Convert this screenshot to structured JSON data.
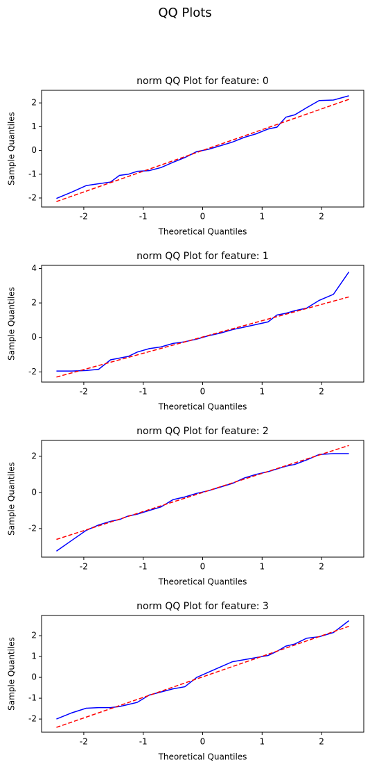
{
  "title": "QQ Plots",
  "chart_data": [
    {
      "type": "line",
      "title": "norm QQ Plot for feature: 0",
      "xlabel": "Theoretical Quantiles",
      "ylabel": "Sample Quantiles",
      "x": [
        -2.46,
        -2.2,
        -1.96,
        -1.75,
        -1.55,
        -1.4,
        -1.25,
        -1.1,
        -0.9,
        -0.7,
        -0.5,
        -0.3,
        -0.1,
        0.1,
        0.3,
        0.5,
        0.7,
        0.9,
        1.1,
        1.25,
        1.4,
        1.55,
        1.75,
        1.96,
        2.2,
        2.46
      ],
      "series": [
        {
          "color": "#0000ff",
          "values": [
            -2.02,
            -1.75,
            -1.48,
            -1.4,
            -1.33,
            -1.05,
            -1.0,
            -0.88,
            -0.85,
            -0.72,
            -0.5,
            -0.3,
            -0.05,
            0.05,
            0.2,
            0.35,
            0.55,
            0.7,
            0.9,
            0.98,
            1.4,
            1.5,
            1.8,
            2.1,
            2.12,
            2.3
          ]
        },
        {
          "color": "#ff0000",
          "dashed": true,
          "x": [
            -2.46,
            2.46
          ],
          "values": [
            -2.15,
            2.15
          ]
        }
      ],
      "xlim": [
        -2.71,
        2.71
      ],
      "ylim": [
        -2.38,
        2.53
      ],
      "xticks": [
        -2,
        -1,
        0,
        1,
        2
      ],
      "yticks": [
        -2,
        -1,
        0,
        1,
        2
      ]
    },
    {
      "type": "line",
      "title": "norm QQ Plot for feature: 1",
      "xlabel": "Theoretical Quantiles",
      "ylabel": "Sample Quantiles",
      "x": [
        -2.46,
        -2.2,
        -1.96,
        -1.75,
        -1.55,
        -1.4,
        -1.25,
        -1.1,
        -0.9,
        -0.7,
        -0.5,
        -0.3,
        -0.1,
        0.1,
        0.3,
        0.5,
        0.7,
        0.9,
        1.1,
        1.25,
        1.4,
        1.55,
        1.75,
        1.96,
        2.2,
        2.46
      ],
      "series": [
        {
          "color": "#0000ff",
          "values": [
            -1.95,
            -1.95,
            -1.92,
            -1.85,
            -1.3,
            -1.2,
            -1.1,
            -0.85,
            -0.65,
            -0.55,
            -0.35,
            -0.25,
            -0.1,
            0.1,
            0.25,
            0.45,
            0.6,
            0.75,
            0.9,
            1.3,
            1.4,
            1.55,
            1.7,
            2.15,
            2.5,
            3.8
          ]
        },
        {
          "color": "#ff0000",
          "dashed": true,
          "x": [
            -2.46,
            2.46
          ],
          "values": [
            -2.3,
            2.35
          ]
        }
      ],
      "xlim": [
        -2.71,
        2.71
      ],
      "ylim": [
        -2.59,
        4.18
      ],
      "xticks": [
        -2,
        -1,
        0,
        1,
        2
      ],
      "yticks": [
        -2,
        0,
        2,
        4
      ]
    },
    {
      "type": "line",
      "title": "norm QQ Plot for feature: 2",
      "xlabel": "Theoretical Quantiles",
      "ylabel": "Sample Quantiles",
      "x": [
        -2.46,
        -2.2,
        -1.96,
        -1.75,
        -1.55,
        -1.4,
        -1.25,
        -1.1,
        -0.9,
        -0.7,
        -0.5,
        -0.3,
        -0.1,
        0.1,
        0.3,
        0.5,
        0.7,
        0.9,
        1.1,
        1.25,
        1.4,
        1.55,
        1.75,
        1.96,
        2.2,
        2.46
      ],
      "series": [
        {
          "color": "#0000ff",
          "values": [
            -3.25,
            -2.65,
            -2.1,
            -1.8,
            -1.6,
            -1.5,
            -1.3,
            -1.2,
            -1.0,
            -0.8,
            -0.4,
            -0.25,
            -0.05,
            0.1,
            0.3,
            0.5,
            0.8,
            1.0,
            1.15,
            1.3,
            1.45,
            1.55,
            1.8,
            2.1,
            2.15,
            2.15
          ]
        },
        {
          "color": "#ff0000",
          "dashed": true,
          "x": [
            -2.46,
            2.46
          ],
          "values": [
            -2.6,
            2.6
          ]
        }
      ],
      "xlim": [
        -2.71,
        2.71
      ],
      "ylim": [
        -3.58,
        2.88
      ],
      "xticks": [
        -2,
        -1,
        0,
        1,
        2
      ],
      "yticks": [
        -2,
        0,
        2
      ]
    },
    {
      "type": "line",
      "title": "norm QQ Plot for feature: 3",
      "xlabel": "Theoretical Quantiles",
      "ylabel": "Sample Quantiles",
      "x": [
        -2.46,
        -2.2,
        -1.96,
        -1.75,
        -1.55,
        -1.4,
        -1.25,
        -1.1,
        -0.9,
        -0.7,
        -0.5,
        -0.3,
        -0.1,
        0.1,
        0.3,
        0.5,
        0.7,
        0.9,
        1.1,
        1.25,
        1.4,
        1.55,
        1.75,
        1.96,
        2.2,
        2.46
      ],
      "series": [
        {
          "color": "#0000ff",
          "values": [
            -2.0,
            -1.7,
            -1.48,
            -1.45,
            -1.45,
            -1.4,
            -1.3,
            -1.2,
            -0.85,
            -0.7,
            -0.55,
            -0.45,
            0.0,
            0.25,
            0.5,
            0.75,
            0.85,
            0.95,
            1.05,
            1.25,
            1.5,
            1.6,
            1.88,
            1.95,
            2.15,
            2.72
          ]
        },
        {
          "color": "#ff0000",
          "dashed": true,
          "x": [
            -2.46,
            2.46
          ],
          "values": [
            -2.4,
            2.45
          ]
        }
      ],
      "xlim": [
        -2.71,
        2.71
      ],
      "ylim": [
        -2.63,
        2.97
      ],
      "xticks": [
        -2,
        -1,
        0,
        1,
        2
      ],
      "yticks": [
        -2,
        -1,
        0,
        1,
        2
      ]
    }
  ]
}
